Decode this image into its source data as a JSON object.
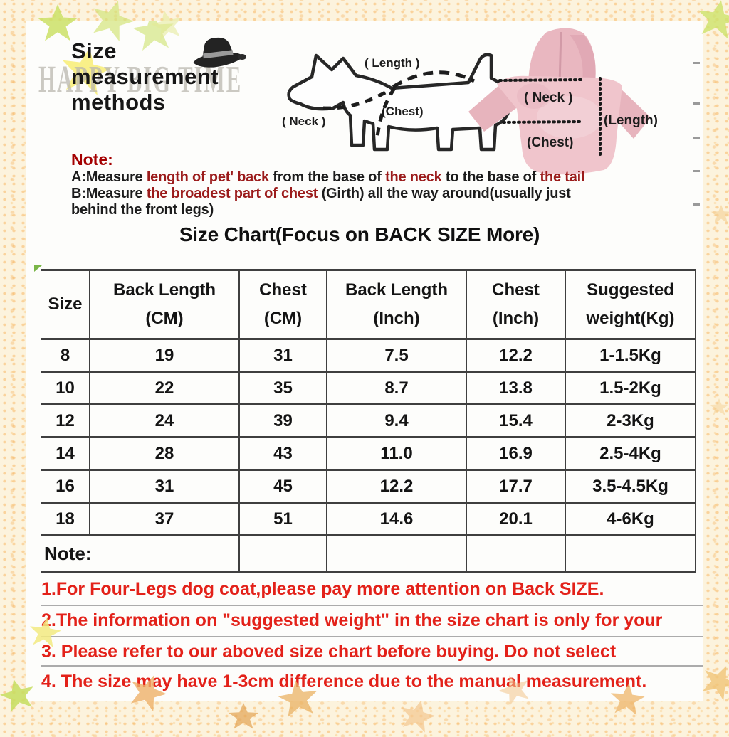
{
  "watermark": "HAPPY BIG TIME",
  "title_lines": [
    "Size",
    "measurement",
    "methods"
  ],
  "dog_diagram": {
    "length_label": "( Length )",
    "chest_label": "(Chest)",
    "neck_label": "( Neck )"
  },
  "hoodie_diagram": {
    "neck_label": "( Neck )",
    "chest_label": "(Chest)",
    "length_label": "(Length)"
  },
  "measure_note": {
    "heading": "Note:",
    "lines": [
      [
        {
          "t": "A:Measure ",
          "red": false
        },
        {
          "t": "length of pet' back",
          "red": true
        },
        {
          "t": " from the base of ",
          "red": false
        },
        {
          "t": "the neck",
          "red": true
        },
        {
          "t": " to the base of ",
          "red": false
        },
        {
          "t": "the tail",
          "red": true
        }
      ],
      [
        {
          "t": "B:Measure ",
          "red": false
        },
        {
          "t": "the broadest part of chest",
          "red": true
        },
        {
          "t": " (Girth) all the way around(usually just",
          "red": false
        }
      ],
      [
        {
          "t": "behind the front legs)",
          "red": false
        }
      ]
    ]
  },
  "size_chart": {
    "title": "Size Chart(Focus on BACK SIZE More)",
    "columns": [
      [
        "Size"
      ],
      [
        "Back Length",
        "(CM)"
      ],
      [
        "Chest",
        "(CM)"
      ],
      [
        "Back Length",
        "(Inch)"
      ],
      [
        "Chest",
        "(Inch)"
      ],
      [
        "Suggested",
        "weight(Kg)"
      ]
    ],
    "rows": [
      [
        "8",
        "19",
        "31",
        "7.5",
        "12.2",
        "1-1.5Kg"
      ],
      [
        "10",
        "22",
        "35",
        "8.7",
        "13.8",
        "1.5-2Kg"
      ],
      [
        "12",
        "24",
        "39",
        "9.4",
        "15.4",
        "2-3Kg"
      ],
      [
        "14",
        "28",
        "43",
        "11.0",
        "16.9",
        "2.5-4Kg"
      ],
      [
        "16",
        "31",
        "45",
        "12.2",
        "17.7",
        "3.5-4.5Kg"
      ],
      [
        "18",
        "37",
        "51",
        "14.6",
        "20.1",
        "4-6Kg"
      ]
    ],
    "note_label": "Note:"
  },
  "footer_notes": [
    "1.For Four-Legs dog coat,please pay more attention on Back SIZE.",
    "2.The information on \"suggested weight\" in the size chart is only for your",
    "3. Please refer to our aboved size chart before buying. Do not select",
    "4. The size may have 1-3cm difference due to the manual measurement."
  ],
  "colors": {
    "note-red": "#e32119",
    "dark-red": "#a40000",
    "accent-dark-red": "#9b1b1b",
    "table-line": "#3f3f3f",
    "sep-gray": "#ababab",
    "hoodie-pink": "#f0c5cc",
    "hoodie-pink-dark": "#e7b4bd"
  }
}
